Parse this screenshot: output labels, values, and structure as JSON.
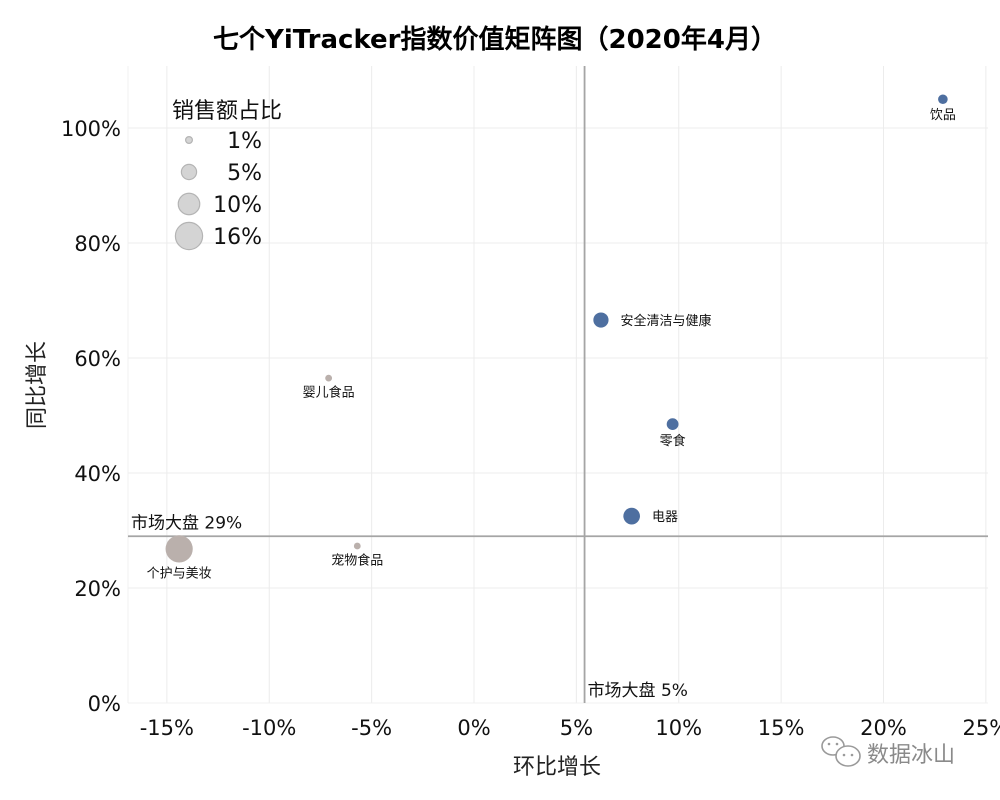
{
  "chart_data": {
    "type": "scatter",
    "title": "七个YiTracker指数价值矩阵图（2020年4月）",
    "xlabel": "环比增长",
    "ylabel": "同比增长",
    "xlim": [
      -0.169,
      0.256
    ],
    "ylim": [
      -0.03,
      1.1
    ],
    "x_ticks": [
      -0.15,
      -0.1,
      -0.05,
      0.0,
      0.05,
      0.1,
      0.15,
      0.2,
      0.25
    ],
    "x_tick_labels": [
      "-15%",
      "-10%",
      "-5%",
      "0%",
      "5%",
      "10%",
      "15%",
      "20%",
      "25%"
    ],
    "y_ticks": [
      0.0,
      0.2,
      0.4,
      0.6,
      0.8,
      1.0
    ],
    "y_tick_labels": [
      "0%",
      "20%",
      "40%",
      "60%",
      "80%",
      "100%"
    ],
    "grid": true,
    "size_legend": {
      "title": "销售额占比",
      "position": "top-left",
      "entries": [
        {
          "label": "1%",
          "value": 0.01
        },
        {
          "label": "5%",
          "value": 0.05
        },
        {
          "label": "10%",
          "value": 0.1
        },
        {
          "label": "16%",
          "value": 0.16
        }
      ]
    },
    "reference_lines": [
      {
        "axis": "x",
        "value": 0.054,
        "label": "市场大盘 5%"
      },
      {
        "axis": "y",
        "value": 0.29,
        "label": "市场大盘 29%"
      }
    ],
    "points": [
      {
        "name": "饮品",
        "x": 0.229,
        "y": 1.05,
        "size_pct": 0.02,
        "color": "#4e6fa0",
        "label_pos": "below"
      },
      {
        "name": "安全清洁与健康",
        "x": 0.062,
        "y": 0.666,
        "size_pct": 0.05,
        "color": "#4e6fa0",
        "label_pos": "right"
      },
      {
        "name": "零食",
        "x": 0.097,
        "y": 0.485,
        "size_pct": 0.03,
        "color": "#4e6fa0",
        "label_pos": "below"
      },
      {
        "name": "电器",
        "x": 0.077,
        "y": 0.325,
        "size_pct": 0.06,
        "color": "#4e6fa0",
        "label_pos": "right"
      },
      {
        "name": "婴儿食品",
        "x": -0.071,
        "y": 0.565,
        "size_pct": 0.01,
        "color": "#bab0ac",
        "label_pos": "below"
      },
      {
        "name": "宠物食品",
        "x": -0.057,
        "y": 0.273,
        "size_pct": 0.01,
        "color": "#bab0ac",
        "label_pos": "below"
      },
      {
        "name": "个护与美妆",
        "x": -0.144,
        "y": 0.268,
        "size_pct": 0.16,
        "color": "#bab0ac",
        "label_pos": "below"
      }
    ]
  },
  "watermark": {
    "icon": "wechat-icon",
    "text": "数据冰山"
  },
  "colors": {
    "above_market": "#4e6fa0",
    "below_market": "#bab0ac",
    "reference_line": "#a5a5a5",
    "grid": "#ececec"
  }
}
